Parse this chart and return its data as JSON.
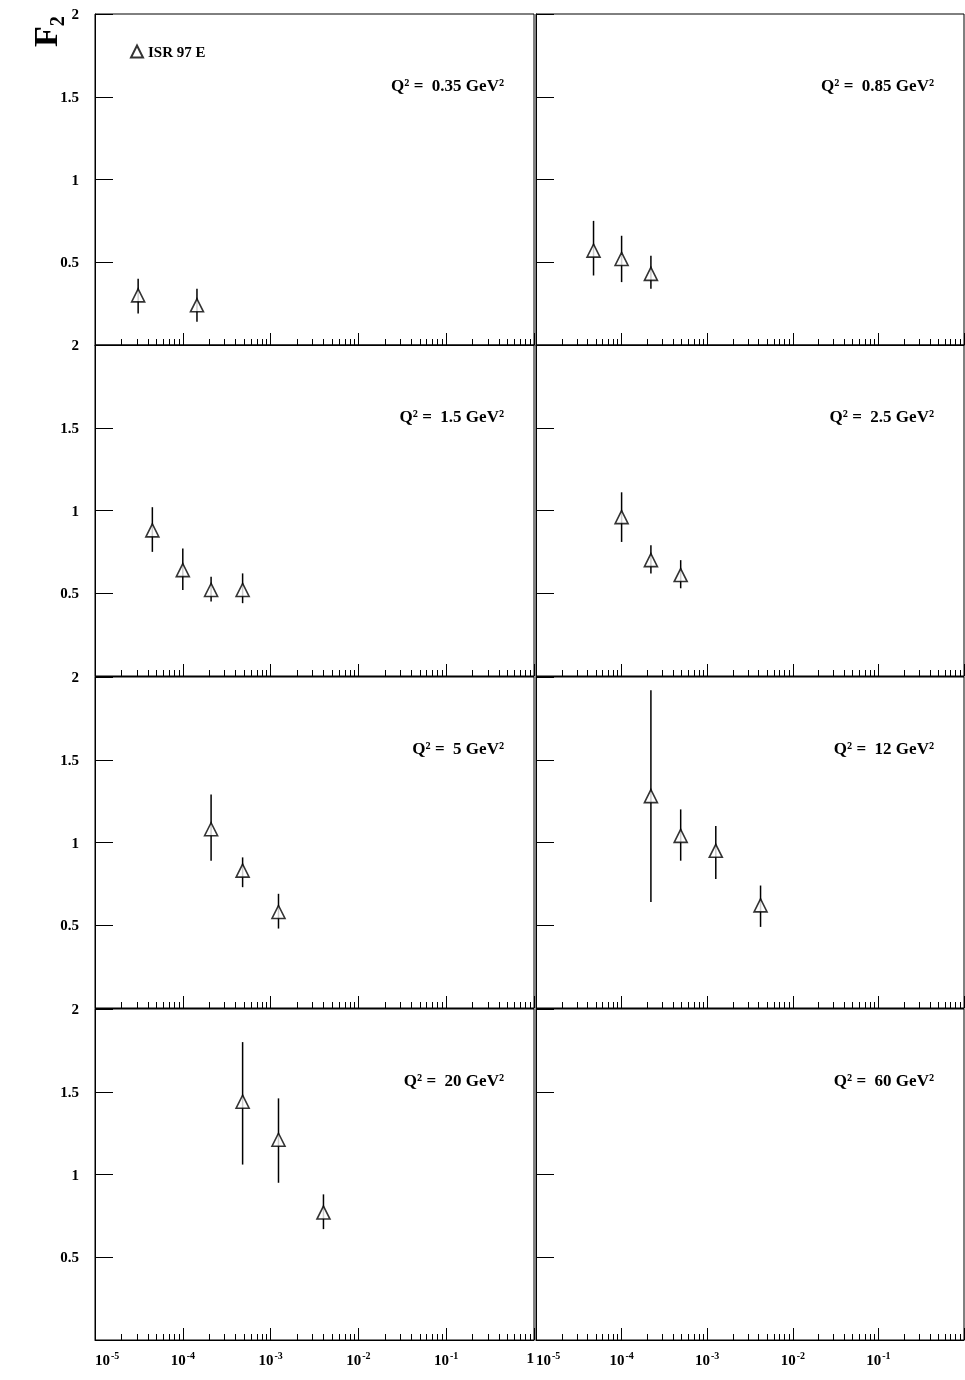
{
  "chart_data": [
    {
      "type": "scatter",
      "ylabel": "F₂",
      "annotations": [
        "Q² =  0.35 GeV²"
      ],
      "legend": "top left",
      "marker": "triangle",
      "log": "x",
      "xlim": [
        1e-05,
        1
      ],
      "xticks": [
        1e-05,
        0.0001,
        0.001,
        0.01,
        0.1,
        1
      ],
      "ylim": [
        0,
        2
      ],
      "yticks": [
        0.5,
        1,
        1.5,
        2
      ],
      "tick_labels": "y",
      "series": [
        {
          "name": "ISR 97 E",
          "color": "#000000",
          "x": [
            3.1e-05,
            0.000145
          ],
          "values": [
            0.3,
            0.24
          ],
          "errors": [
            [
              0.19,
              0.4
            ],
            [
              0.14,
              0.34
            ]
          ]
        }
      ]
    },
    {
      "type": "scatter",
      "annotations": [
        "Q² =  0.85 GeV²"
      ],
      "marker": "triangle",
      "log": "x",
      "xlim": [
        1e-05,
        1
      ],
      "xticks": [
        1e-05,
        0.0001,
        0.001,
        0.01,
        0.1,
        1
      ],
      "ylim": [
        0,
        2
      ],
      "yticks": [
        0.5,
        1,
        1.5,
        2
      ],
      "tick_labels": false,
      "series": [
        {
          "color": "#000000",
          "x": [
            4.7e-05,
            0.0001,
            0.00022
          ],
          "values": [
            0.57,
            0.52,
            0.43
          ],
          "errors": [
            [
              0.42,
              0.75
            ],
            [
              0.38,
              0.66
            ],
            [
              0.34,
              0.54
            ]
          ]
        }
      ]
    },
    {
      "type": "scatter",
      "annotations": [
        "Q² =  1.5 GeV²"
      ],
      "marker": "triangle",
      "log": "x",
      "xlim": [
        1e-05,
        1
      ],
      "xticks": [
        1e-05,
        0.0001,
        0.001,
        0.01,
        0.1,
        1
      ],
      "ylim": [
        0,
        2
      ],
      "yticks": [
        0.5,
        1,
        1.5,
        2
      ],
      "tick_labels": "y",
      "series": [
        {
          "color": "#000000",
          "x": [
            4.5e-05,
            0.0001,
            0.00021,
            0.00048
          ],
          "values": [
            0.88,
            0.64,
            0.52,
            0.52
          ],
          "errors": [
            [
              0.75,
              1.02
            ],
            [
              0.52,
              0.77
            ],
            [
              0.45,
              0.6
            ],
            [
              0.44,
              0.62
            ]
          ]
        }
      ]
    },
    {
      "type": "scatter",
      "annotations": [
        "Q² =  2.5 GeV²"
      ],
      "marker": "triangle",
      "log": "x",
      "xlim": [
        1e-05,
        1
      ],
      "xticks": [
        1e-05,
        0.0001,
        0.001,
        0.01,
        0.1,
        1
      ],
      "ylim": [
        0,
        2
      ],
      "yticks": [
        0.5,
        1,
        1.5,
        2
      ],
      "tick_labels": false,
      "series": [
        {
          "color": "#000000",
          "x": [
            0.0001,
            0.00022,
            0.00049
          ],
          "values": [
            0.96,
            0.7,
            0.61
          ],
          "errors": [
            [
              0.81,
              1.11
            ],
            [
              0.62,
              0.79
            ],
            [
              0.53,
              0.7
            ]
          ]
        }
      ]
    },
    {
      "type": "scatter",
      "annotations": [
        "Q² =  5 GeV²"
      ],
      "marker": "triangle",
      "log": "x",
      "xlim": [
        1e-05,
        1
      ],
      "xticks": [
        1e-05,
        0.0001,
        0.001,
        0.01,
        0.1,
        1
      ],
      "ylim": [
        0,
        2
      ],
      "yticks": [
        0.5,
        1,
        1.5,
        2
      ],
      "tick_labels": "y",
      "series": [
        {
          "color": "#000000",
          "x": [
            0.00021,
            0.00048,
            0.00123
          ],
          "values": [
            1.08,
            0.83,
            0.58
          ],
          "errors": [
            [
              0.89,
              1.29
            ],
            [
              0.73,
              0.91
            ],
            [
              0.48,
              0.69
            ]
          ]
        }
      ]
    },
    {
      "type": "scatter",
      "annotations": [
        "Q² =  12 GeV²"
      ],
      "marker": "triangle",
      "log": "x",
      "xlim": [
        1e-05,
        1
      ],
      "xticks": [
        1e-05,
        0.0001,
        0.001,
        0.01,
        0.1,
        1
      ],
      "ylim": [
        0,
        2
      ],
      "yticks": [
        0.5,
        1,
        1.5,
        2
      ],
      "tick_labels": false,
      "series": [
        {
          "color": "#000000",
          "x": [
            0.00022,
            0.00049,
            0.00126,
            0.0042
          ],
          "values": [
            1.28,
            1.04,
            0.95,
            0.62
          ],
          "errors": [
            [
              0.64,
              1.92
            ],
            [
              0.89,
              1.2
            ],
            [
              0.78,
              1.1
            ],
            [
              0.49,
              0.74
            ]
          ]
        }
      ]
    },
    {
      "type": "scatter",
      "annotations": [
        "Q² =  20 GeV²"
      ],
      "marker": "triangle",
      "log": "x",
      "xlim": [
        1e-05,
        1
      ],
      "xticks": [
        {
          "value": 1e-05,
          "label": "10$^{-5}$"
        },
        {
          "value": 0.0001,
          "label": "10$^{-4}$"
        },
        {
          "value": 0.001,
          "label": "10$^{-3}$"
        },
        {
          "value": 0.01,
          "label": "10$^{-2}$"
        },
        {
          "value": 0.1,
          "label": "10$^{-1}$"
        },
        1
      ],
      "ylim": [
        0,
        2
      ],
      "yticks": [
        0.5,
        1,
        1.5,
        2
      ],
      "series": [
        {
          "color": "#000000",
          "x": [
            0.00048,
            0.00123,
            0.004
          ],
          "values": [
            1.44,
            1.21,
            0.77
          ],
          "errors": [
            [
              1.06,
              1.8
            ],
            [
              0.95,
              1.46
            ],
            [
              0.67,
              0.88
            ]
          ]
        }
      ]
    },
    {
      "type": "scatter",
      "annotations": [
        "Q² =  60 GeV²"
      ],
      "marker": "triangle",
      "log": "x",
      "xlim": [
        1e-05,
        1
      ],
      "xticks": [
        {
          "value": 1e-05,
          "label": "10$^{-5}$"
        },
        {
          "value": 0.0001,
          "label": "10$^{-4}$"
        },
        {
          "value": 0.001,
          "label": "10$^{-3}$"
        },
        {
          "value": 0.01,
          "label": "10$^{-2}$"
        },
        {
          "value": 0.1,
          "label": "10$^{-1}$"
        },
        {
          "value": 1,
          "label": null
        }
      ],
      "ylim": [
        0,
        2
      ],
      "yticks": [
        0.5,
        1,
        1.5,
        2
      ],
      "tick_labels": "x"
    }
  ]
}
